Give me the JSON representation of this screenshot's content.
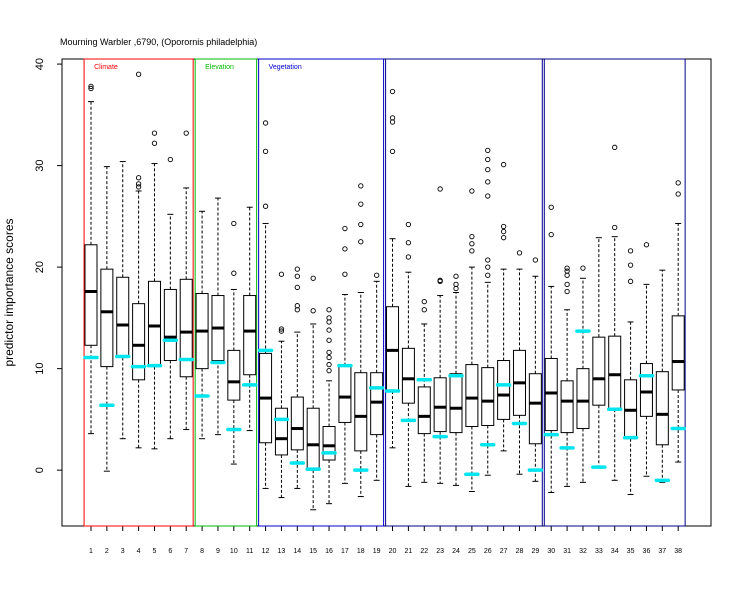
{
  "chart_data": {
    "type": "boxplot",
    "title": "Mourning Warbler ,6790, (Oporornis philadelphia)",
    "xlabel": "",
    "ylabel": "predictor importance scores",
    "ylim": [
      -5.5,
      40.5
    ],
    "yticks": [
      0,
      10,
      20,
      30,
      40
    ],
    "categories": [
      "1",
      "2",
      "3",
      "4",
      "5",
      "6",
      "7",
      "8",
      "9",
      "10",
      "11",
      "12",
      "13",
      "14",
      "15",
      "16",
      "17",
      "18",
      "19",
      "20",
      "21",
      "22",
      "23",
      "24",
      "25",
      "26",
      "27",
      "28",
      "29",
      "30",
      "31",
      "32",
      "33",
      "34",
      "35",
      "36",
      "37",
      "38"
    ],
    "groups": [
      {
        "label": "Climate",
        "color": "#ff0000",
        "from": 1,
        "to": 7
      },
      {
        "label": "Elevation",
        "color": "#00bb00",
        "from": 8,
        "to": 11
      },
      {
        "label": "Vegetation",
        "color": "#0000cc",
        "from": 12,
        "to": 19
      },
      {
        "label": "",
        "color": "#00008b",
        "from": 20,
        "to": 29
      },
      {
        "label": "",
        "color": "#00008b",
        "from": 30,
        "to": 38
      }
    ],
    "boxes": [
      {
        "q1": 12.3,
        "median": 17.6,
        "q3": 22.2,
        "wlo": 3.6,
        "whi": 36.3,
        "outliers": [
          37.8,
          37.6
        ],
        "marker": 11.1
      },
      {
        "q1": 10.2,
        "median": 15.6,
        "q3": 19.8,
        "wlo": -0.1,
        "whi": 29.9,
        "outliers": [],
        "marker": 6.4
      },
      {
        "q1": 11.1,
        "median": 14.3,
        "q3": 19.0,
        "wlo": 3.1,
        "whi": 30.4,
        "outliers": [],
        "marker": 11.2
      },
      {
        "q1": 8.9,
        "median": 12.3,
        "q3": 16.4,
        "wlo": 2.2,
        "whi": 27.5,
        "outliers": [
          28.8,
          28.2,
          27.9,
          39.0
        ],
        "marker": 10.2
      },
      {
        "q1": 10.2,
        "median": 14.2,
        "q3": 18.6,
        "wlo": 2.1,
        "whi": 30.2,
        "outliers": [
          32.2,
          33.2
        ],
        "marker": 10.3
      },
      {
        "q1": 10.8,
        "median": 13.1,
        "q3": 17.8,
        "wlo": 3.1,
        "whi": 25.2,
        "outliers": [
          30.6
        ],
        "marker": 12.8
      },
      {
        "q1": 9.2,
        "median": 13.6,
        "q3": 18.8,
        "wlo": 4.0,
        "whi": 27.8,
        "outliers": [
          33.2
        ],
        "marker": 10.9
      },
      {
        "q1": 10.0,
        "median": 13.7,
        "q3": 17.4,
        "wlo": 3.1,
        "whi": 25.5,
        "outliers": [],
        "marker": 7.3
      },
      {
        "q1": 10.8,
        "median": 14.0,
        "q3": 17.2,
        "wlo": 3.5,
        "whi": 26.8,
        "outliers": [],
        "marker": 10.6
      },
      {
        "q1": 6.9,
        "median": 8.7,
        "q3": 11.8,
        "wlo": 0.6,
        "whi": 17.8,
        "outliers": [
          19.4,
          24.3
        ],
        "marker": 4.0
      },
      {
        "q1": 9.4,
        "median": 13.7,
        "q3": 17.2,
        "wlo": 3.9,
        "whi": 25.9,
        "outliers": [],
        "marker": 8.4
      },
      {
        "q1": 2.7,
        "median": 7.1,
        "q3": 11.5,
        "wlo": -1.8,
        "whi": 24.3,
        "outliers": [
          26.0,
          31.4,
          34.2
        ],
        "marker": 11.8
      },
      {
        "q1": 1.5,
        "median": 3.1,
        "q3": 6.1,
        "wlo": -2.7,
        "whi": 12.7,
        "outliers": [
          13.7,
          13.9,
          19.3
        ],
        "marker": 5.0
      },
      {
        "q1": 2.0,
        "median": 4.1,
        "q3": 7.2,
        "wlo": -1.8,
        "whi": 13.6,
        "outliers": [
          15.8,
          16.2,
          18.0,
          19.1,
          19.8
        ],
        "marker": 0.7
      },
      {
        "q1": 0.0,
        "median": 2.5,
        "q3": 6.1,
        "wlo": -3.9,
        "whi": 14.4,
        "outliers": [
          15.7,
          18.9
        ],
        "marker": 0.1
      },
      {
        "q1": 1.0,
        "median": 2.4,
        "q3": 4.3,
        "wlo": -3.3,
        "whi": 8.8,
        "outliers": [
          9.8,
          10.4,
          11.1,
          11.6,
          12.8,
          13.8,
          14.6,
          15.0,
          15.8
        ],
        "marker": 1.7
      },
      {
        "q1": 4.7,
        "median": 7.2,
        "q3": 10.3,
        "wlo": -1.3,
        "whi": 17.3,
        "outliers": [
          19.3,
          21.8,
          23.8
        ],
        "marker": 10.3
      },
      {
        "q1": 1.9,
        "median": 5.3,
        "q3": 9.6,
        "wlo": -2.6,
        "whi": 17.5,
        "outliers": [
          22.5,
          24.2,
          26.2,
          28.0
        ],
        "marker": 0.0
      },
      {
        "q1": 3.5,
        "median": 6.7,
        "q3": 9.6,
        "wlo": -1.0,
        "whi": 18.6,
        "outliers": [
          19.2
        ],
        "marker": 8.1
      },
      {
        "q1": 7.8,
        "median": 11.8,
        "q3": 16.1,
        "wlo": 2.2,
        "whi": 22.8,
        "outliers": [
          31.4,
          34.3,
          34.7,
          37.3
        ],
        "marker": 7.8
      },
      {
        "q1": 6.6,
        "median": 9.0,
        "q3": 12.0,
        "wlo": -1.6,
        "whi": 19.5,
        "outliers": [
          21.0,
          22.4,
          24.2
        ],
        "marker": 4.9
      },
      {
        "q1": 3.6,
        "median": 5.3,
        "q3": 8.2,
        "wlo": -1.2,
        "whi": 14.4,
        "outliers": [
          15.8,
          16.6
        ],
        "marker": 8.9
      },
      {
        "q1": 3.8,
        "median": 6.2,
        "q3": 9.1,
        "wlo": -1.3,
        "whi": 17.2,
        "outliers": [
          18.6,
          18.7,
          27.7
        ],
        "marker": 3.3
      },
      {
        "q1": 3.7,
        "median": 6.1,
        "q3": 9.5,
        "wlo": -1.5,
        "whi": 17.5,
        "outliers": [
          17.9,
          18.3,
          19.1
        ],
        "marker": 9.3
      },
      {
        "q1": 4.3,
        "median": 7.1,
        "q3": 10.4,
        "wlo": -2.1,
        "whi": 20.0,
        "outliers": [
          21.6,
          22.3,
          23.0,
          27.5
        ],
        "marker": -0.4
      },
      {
        "q1": 4.4,
        "median": 6.8,
        "q3": 10.1,
        "wlo": -0.5,
        "whi": 18.5,
        "outliers": [
          19.2,
          20.0,
          20.7,
          27.0,
          28.4,
          29.6,
          30.6,
          31.5
        ],
        "marker": 2.5
      },
      {
        "q1": 5.0,
        "median": 7.4,
        "q3": 10.8,
        "wlo": 1.9,
        "whi": 19.8,
        "outliers": [
          22.9,
          23.5,
          24.0,
          30.1
        ],
        "marker": 8.4
      },
      {
        "q1": 5.4,
        "median": 8.6,
        "q3": 11.8,
        "wlo": -0.4,
        "whi": 19.8,
        "outliers": [
          21.4
        ],
        "marker": 4.6
      },
      {
        "q1": 2.6,
        "median": 6.6,
        "q3": 9.5,
        "wlo": -1.1,
        "whi": 19.1,
        "outliers": [
          20.7
        ],
        "marker": 0.0
      },
      {
        "q1": 3.9,
        "median": 7.6,
        "q3": 11.0,
        "wlo": -2.2,
        "whi": 18.1,
        "outliers": [
          23.2,
          25.9
        ],
        "marker": 3.5
      },
      {
        "q1": 3.7,
        "median": 6.8,
        "q3": 8.8,
        "wlo": -1.6,
        "whi": 15.8,
        "outliers": [
          17.6,
          18.3,
          19.2,
          19.6,
          19.9
        ],
        "marker": 2.2
      },
      {
        "q1": 4.1,
        "median": 6.8,
        "q3": 10.0,
        "wlo": -1.2,
        "whi": 18.9,
        "outliers": [
          19.9
        ],
        "marker": 13.7
      },
      {
        "q1": 6.4,
        "median": 9.0,
        "q3": 13.1,
        "wlo": 0.3,
        "whi": 22.9,
        "outliers": [],
        "marker": 0.3
      },
      {
        "q1": 6.0,
        "median": 9.4,
        "q3": 13.2,
        "wlo": -1.0,
        "whi": 23.0,
        "outliers": [
          23.9,
          31.8
        ],
        "marker": 6.0
      },
      {
        "q1": 3.1,
        "median": 5.9,
        "q3": 8.9,
        "wlo": -2.4,
        "whi": 14.6,
        "outliers": [
          18.6,
          20.2,
          21.6
        ],
        "marker": 3.2
      },
      {
        "q1": 5.3,
        "median": 7.7,
        "q3": 10.5,
        "wlo": -0.6,
        "whi": 18.3,
        "outliers": [
          22.2
        ],
        "marker": 9.3
      },
      {
        "q1": 2.5,
        "median": 5.5,
        "q3": 9.7,
        "wlo": -1.2,
        "whi": 19.7,
        "outliers": [],
        "marker": -1.0
      },
      {
        "q1": 7.9,
        "median": 10.7,
        "q3": 15.2,
        "wlo": 0.8,
        "whi": 24.3,
        "outliers": [
          27.2,
          28.3
        ],
        "marker": 4.1
      }
    ],
    "colors": {
      "box": "#000000",
      "marker": "#00e5ee"
    },
    "grid": false,
    "legend": "none"
  }
}
